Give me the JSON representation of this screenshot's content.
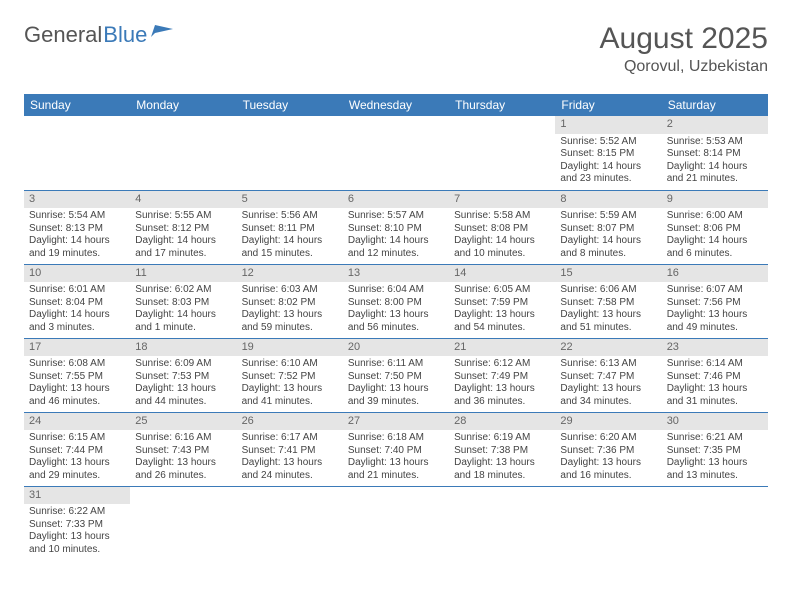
{
  "logo": {
    "text1": "General",
    "text2": "Blue",
    "icon_color": "#3b7ab8"
  },
  "title": "August 2025",
  "location": "Qorovul, Uzbekistan",
  "colors": {
    "header_bg": "#3b7ab8",
    "header_fg": "#ffffff",
    "daynum_bg": "#e5e5e5",
    "border": "#3b7ab8",
    "text": "#444444",
    "title": "#555555"
  },
  "day_labels": [
    "Sunday",
    "Monday",
    "Tuesday",
    "Wednesday",
    "Thursday",
    "Friday",
    "Saturday"
  ],
  "first_weekday": 5,
  "days": [
    {
      "n": 1,
      "sr": "5:52 AM",
      "ss": "8:15 PM",
      "dl": "14 hours and 23 minutes."
    },
    {
      "n": 2,
      "sr": "5:53 AM",
      "ss": "8:14 PM",
      "dl": "14 hours and 21 minutes."
    },
    {
      "n": 3,
      "sr": "5:54 AM",
      "ss": "8:13 PM",
      "dl": "14 hours and 19 minutes."
    },
    {
      "n": 4,
      "sr": "5:55 AM",
      "ss": "8:12 PM",
      "dl": "14 hours and 17 minutes."
    },
    {
      "n": 5,
      "sr": "5:56 AM",
      "ss": "8:11 PM",
      "dl": "14 hours and 15 minutes."
    },
    {
      "n": 6,
      "sr": "5:57 AM",
      "ss": "8:10 PM",
      "dl": "14 hours and 12 minutes."
    },
    {
      "n": 7,
      "sr": "5:58 AM",
      "ss": "8:08 PM",
      "dl": "14 hours and 10 minutes."
    },
    {
      "n": 8,
      "sr": "5:59 AM",
      "ss": "8:07 PM",
      "dl": "14 hours and 8 minutes."
    },
    {
      "n": 9,
      "sr": "6:00 AM",
      "ss": "8:06 PM",
      "dl": "14 hours and 6 minutes."
    },
    {
      "n": 10,
      "sr": "6:01 AM",
      "ss": "8:04 PM",
      "dl": "14 hours and 3 minutes."
    },
    {
      "n": 11,
      "sr": "6:02 AM",
      "ss": "8:03 PM",
      "dl": "14 hours and 1 minute."
    },
    {
      "n": 12,
      "sr": "6:03 AM",
      "ss": "8:02 PM",
      "dl": "13 hours and 59 minutes."
    },
    {
      "n": 13,
      "sr": "6:04 AM",
      "ss": "8:00 PM",
      "dl": "13 hours and 56 minutes."
    },
    {
      "n": 14,
      "sr": "6:05 AM",
      "ss": "7:59 PM",
      "dl": "13 hours and 54 minutes."
    },
    {
      "n": 15,
      "sr": "6:06 AM",
      "ss": "7:58 PM",
      "dl": "13 hours and 51 minutes."
    },
    {
      "n": 16,
      "sr": "6:07 AM",
      "ss": "7:56 PM",
      "dl": "13 hours and 49 minutes."
    },
    {
      "n": 17,
      "sr": "6:08 AM",
      "ss": "7:55 PM",
      "dl": "13 hours and 46 minutes."
    },
    {
      "n": 18,
      "sr": "6:09 AM",
      "ss": "7:53 PM",
      "dl": "13 hours and 44 minutes."
    },
    {
      "n": 19,
      "sr": "6:10 AM",
      "ss": "7:52 PM",
      "dl": "13 hours and 41 minutes."
    },
    {
      "n": 20,
      "sr": "6:11 AM",
      "ss": "7:50 PM",
      "dl": "13 hours and 39 minutes."
    },
    {
      "n": 21,
      "sr": "6:12 AM",
      "ss": "7:49 PM",
      "dl": "13 hours and 36 minutes."
    },
    {
      "n": 22,
      "sr": "6:13 AM",
      "ss": "7:47 PM",
      "dl": "13 hours and 34 minutes."
    },
    {
      "n": 23,
      "sr": "6:14 AM",
      "ss": "7:46 PM",
      "dl": "13 hours and 31 minutes."
    },
    {
      "n": 24,
      "sr": "6:15 AM",
      "ss": "7:44 PM",
      "dl": "13 hours and 29 minutes."
    },
    {
      "n": 25,
      "sr": "6:16 AM",
      "ss": "7:43 PM",
      "dl": "13 hours and 26 minutes."
    },
    {
      "n": 26,
      "sr": "6:17 AM",
      "ss": "7:41 PM",
      "dl": "13 hours and 24 minutes."
    },
    {
      "n": 27,
      "sr": "6:18 AM",
      "ss": "7:40 PM",
      "dl": "13 hours and 21 minutes."
    },
    {
      "n": 28,
      "sr": "6:19 AM",
      "ss": "7:38 PM",
      "dl": "13 hours and 18 minutes."
    },
    {
      "n": 29,
      "sr": "6:20 AM",
      "ss": "7:36 PM",
      "dl": "13 hours and 16 minutes."
    },
    {
      "n": 30,
      "sr": "6:21 AM",
      "ss": "7:35 PM",
      "dl": "13 hours and 13 minutes."
    },
    {
      "n": 31,
      "sr": "6:22 AM",
      "ss": "7:33 PM",
      "dl": "13 hours and 10 minutes."
    }
  ],
  "labels": {
    "sunrise": "Sunrise:",
    "sunset": "Sunset:",
    "daylight": "Daylight:"
  }
}
